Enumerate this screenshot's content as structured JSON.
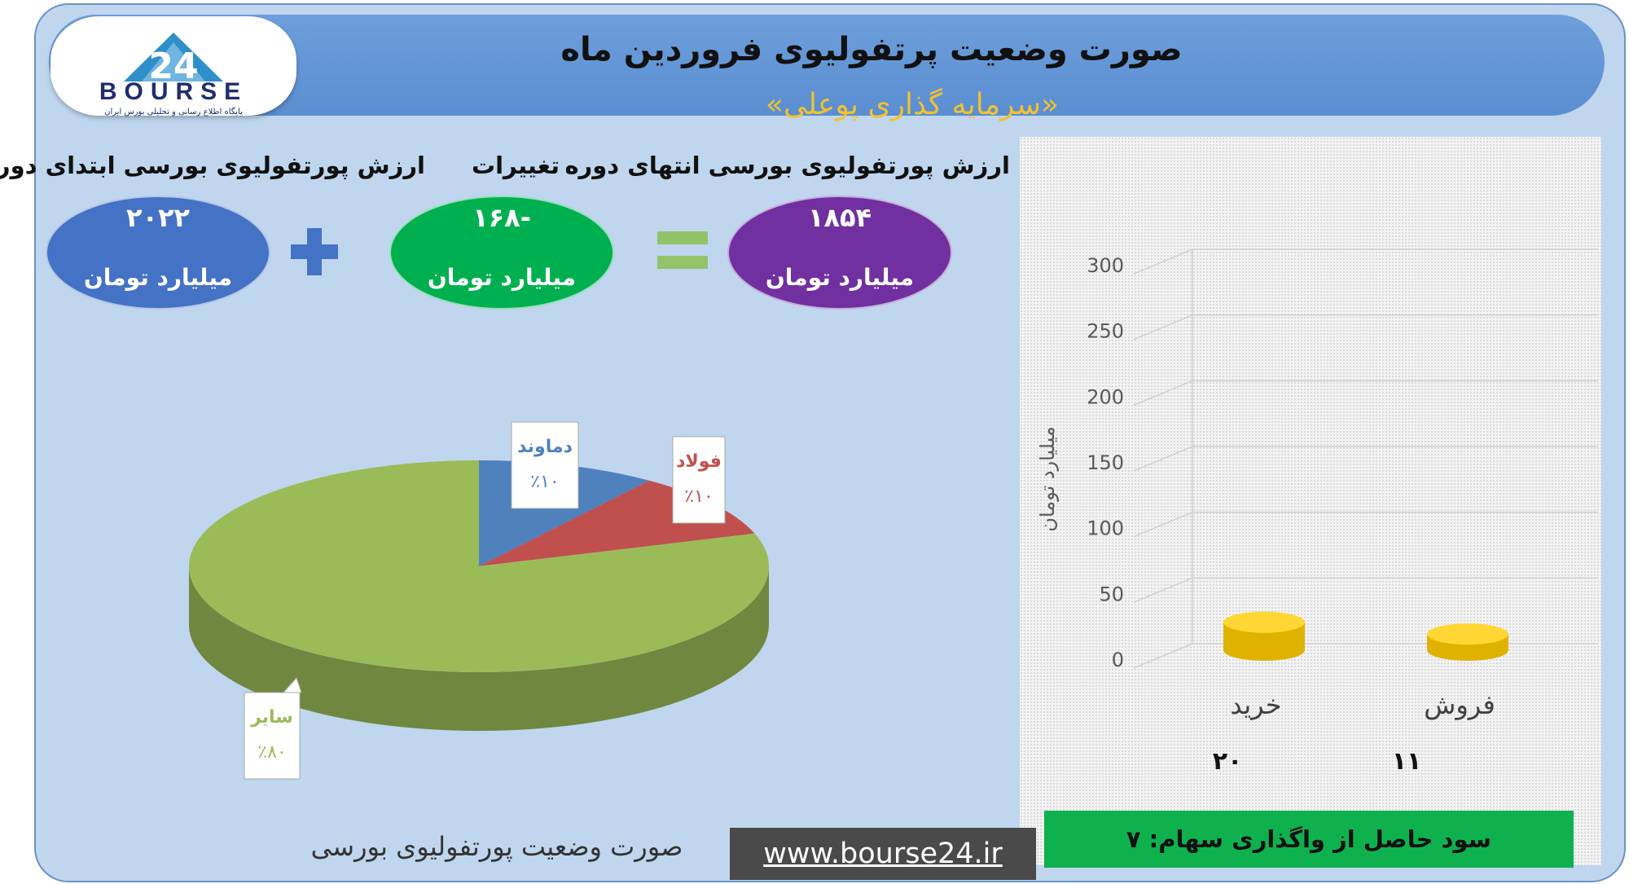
{
  "header": {
    "title": "صورت وضعیت پرتفولیوی فروردین ماه",
    "subtitle": "«سرمایه گذاری پوعلی»",
    "logo_text": "BOURSE",
    "logo_caption": "پایگاه اطلاع رسانی و تحلیلی بورس ایران"
  },
  "metrics": {
    "start": {
      "label": "ارزش پورتفولیوی بورسی ابتدای دوره",
      "value": "۲۰۲۲",
      "unit": "میلیارد تومان"
    },
    "change": {
      "label": "تغییرات",
      "value": "-۱۶۸",
      "unit": "میلیارد تومان"
    },
    "end": {
      "label": "ارزش پورتفولیوی بورسی انتهای دوره",
      "value": "۱۸۵۴",
      "unit": "میلیارد تومان"
    },
    "plus_icon": "plus-icon",
    "equals_icon": "equals-icon"
  },
  "pie_caption": "صورت وضعیت پورتفولیوی بورسی",
  "profit_text": "سود حاصل از واگذاری سهام: ۷",
  "website": "www.bourse24.ir",
  "colors": {
    "blue": "#4472c4",
    "green": "#00b050",
    "purple": "#7030a0",
    "pie_green": "#9bbb59",
    "pie_blue": "#4f81bd",
    "pie_red": "#c0504d",
    "cylinder": "#f5c400",
    "profit_green": "#0fb14f"
  },
  "chart_data": [
    {
      "type": "pie",
      "labels": [
        "دماوند",
        "فولاد",
        "سایر"
      ],
      "values": [
        10,
        10,
        80
      ],
      "display": [
        "٪۱۰",
        "٪۱۰",
        "٪۸۰"
      ],
      "colors": [
        "#4f81bd",
        "#c0504d",
        "#9bbb59"
      ]
    },
    {
      "type": "bar",
      "categories": [
        "خرید",
        "فروش"
      ],
      "values": [
        20,
        11
      ],
      "value_labels": [
        "۲۰",
        "۱۱"
      ],
      "ylabel": "میلیارد تومان",
      "ylim": [
        0,
        300
      ],
      "yticks": [
        0,
        50,
        100,
        150,
        200,
        250,
        300
      ],
      "grid": true
    }
  ]
}
